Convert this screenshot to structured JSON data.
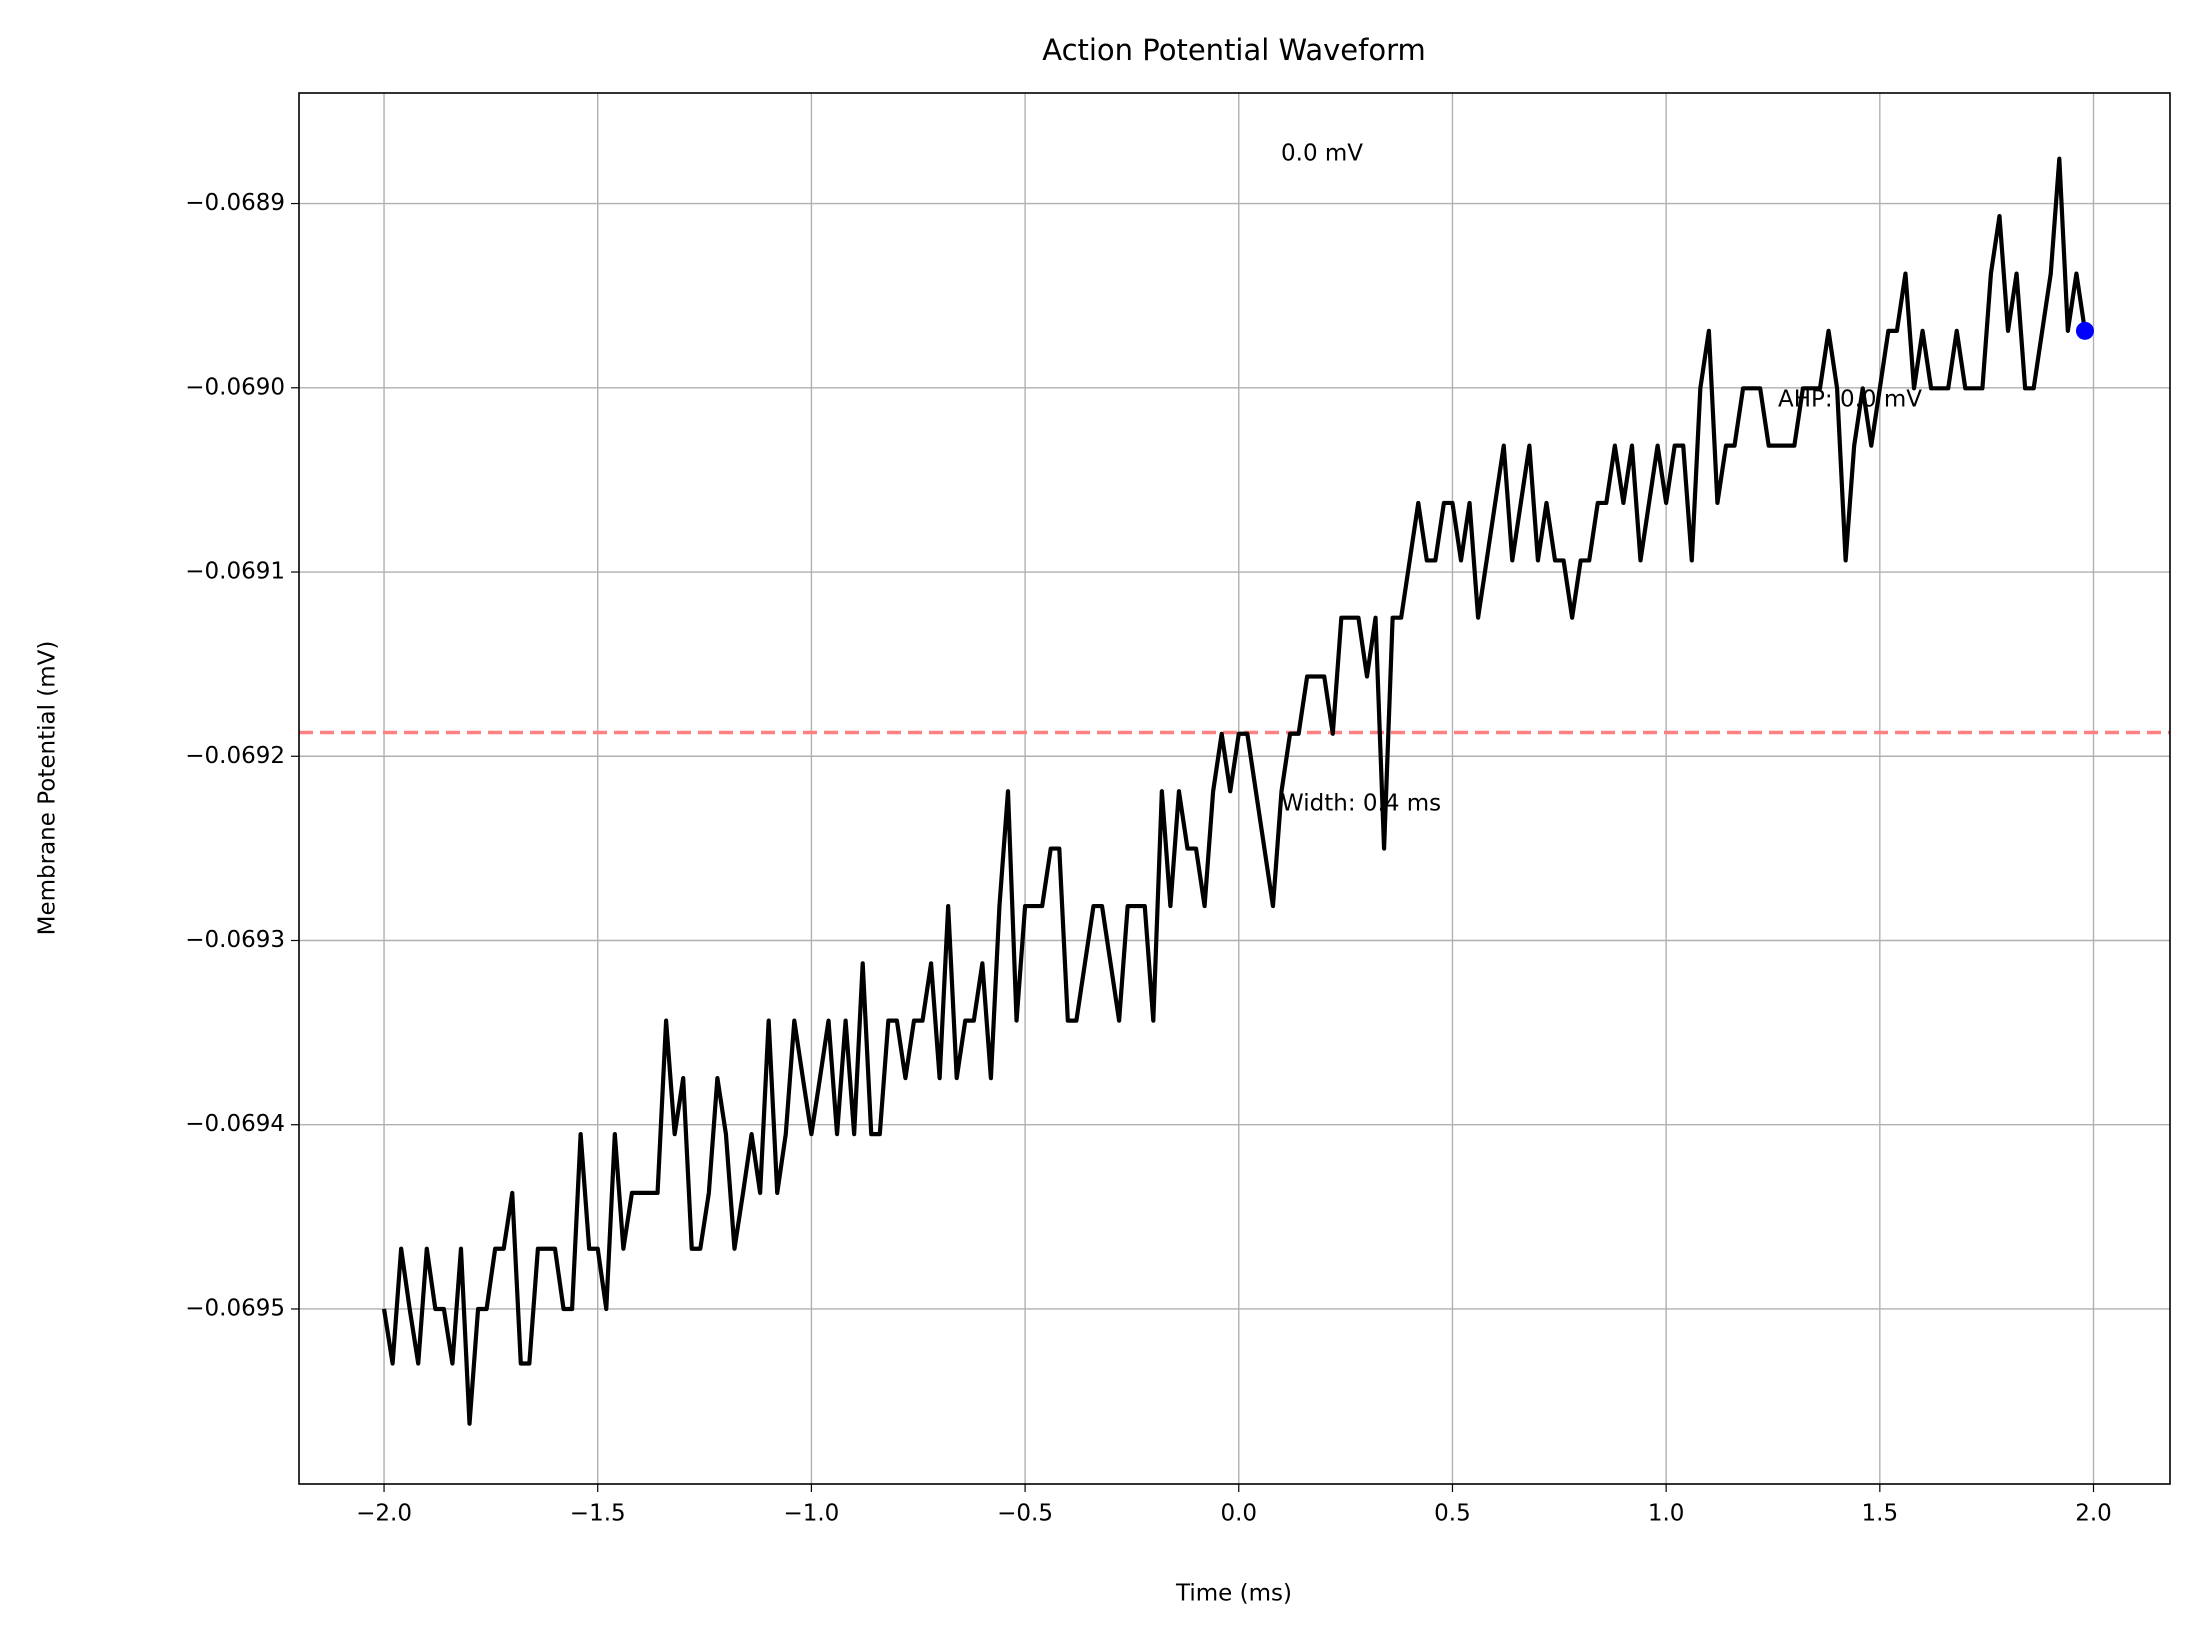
{
  "chart_data": {
    "type": "line",
    "title": "Action Potential Waveform",
    "x_label": "Time (ms)",
    "y_label": "Membrane Potential (mV)",
    "annotations": [
      "0.0 mV",
      "Width: 0.4 ms",
      "AHP: 0.0 mV"
    ],
    "x": [
      -2.0,
      -1.98,
      -1.96,
      -1.94,
      -1.92,
      -1.9,
      -1.88,
      -1.86,
      -1.84,
      -1.82,
      -1.8,
      -1.78,
      -1.76,
      -1.74,
      -1.72,
      -1.7,
      -1.68,
      -1.66,
      -1.64,
      -1.62,
      -1.6,
      -1.58,
      -1.56,
      -1.54,
      -1.52,
      -1.5,
      -1.48,
      -1.46,
      -1.44,
      -1.42,
      -1.4,
      -1.38,
      -1.36,
      -1.34,
      -1.32,
      -1.3,
      -1.28,
      -1.26,
      -1.24,
      -1.22,
      -1.2,
      -1.18,
      -1.16,
      -1.14,
      -1.12,
      -1.1,
      -1.08,
      -1.06,
      -1.04,
      -1.02,
      -1.0,
      -0.98,
      -0.96,
      -0.94,
      -0.92,
      -0.9,
      -0.88,
      -0.86,
      -0.84,
      -0.82,
      -0.8,
      -0.78,
      -0.76,
      -0.74,
      -0.72,
      -0.7,
      -0.68,
      -0.66,
      -0.64,
      -0.62,
      -0.6,
      -0.58,
      -0.56,
      -0.54,
      -0.52,
      -0.5,
      -0.48,
      -0.46,
      -0.44,
      -0.42,
      -0.4,
      -0.38,
      -0.36,
      -0.34,
      -0.32,
      -0.3,
      -0.28,
      -0.26,
      -0.24,
      -0.22,
      -0.2,
      -0.18,
      -0.16,
      -0.14,
      -0.12,
      -0.1,
      -0.08,
      -0.06,
      -0.04,
      -0.02,
      0.0,
      0.02,
      0.04,
      0.06,
      0.08,
      0.1,
      0.12,
      0.14,
      0.16,
      0.18,
      0.2,
      0.22,
      0.24,
      0.26,
      0.28,
      0.3,
      0.32,
      0.34,
      0.36,
      0.38,
      0.4,
      0.42,
      0.44,
      0.46,
      0.48,
      0.5,
      0.52,
      0.54,
      0.56,
      0.58,
      0.6,
      0.62,
      0.64,
      0.66,
      0.68,
      0.7,
      0.72,
      0.74,
      0.76,
      0.78,
      0.8,
      0.82,
      0.84,
      0.86,
      0.88,
      0.9,
      0.92,
      0.94,
      0.96,
      0.98,
      1.0,
      1.02,
      1.04,
      1.06,
      1.08,
      1.1,
      1.12,
      1.14,
      1.16,
      1.18,
      1.2,
      1.22,
      1.24,
      1.26,
      1.28,
      1.3,
      1.32,
      1.34,
      1.36,
      1.38,
      1.4,
      1.42,
      1.44,
      1.46,
      1.48,
      1.5,
      1.52,
      1.54,
      1.56,
      1.58,
      1.6,
      1.62,
      1.64,
      1.66,
      1.68,
      1.7,
      1.72,
      1.74,
      1.76,
      1.78,
      1.8,
      1.82,
      1.84,
      1.86,
      1.88,
      1.9,
      1.92,
      1.94,
      1.96,
      1.98
    ],
    "series": [
      {
        "name": "Membrane Potential",
        "color": "#000000",
        "values": [
          -0.0695,
          -0.0695296,
          -0.0694673,
          -0.0695,
          -0.0695296,
          -0.0694673,
          -0.0695,
          -0.0695,
          -0.0695296,
          -0.0694673,
          -0.0695623,
          -0.0695,
          -0.0695,
          -0.0694673,
          -0.0694673,
          -0.069437,
          -0.0695296,
          -0.0695296,
          -0.0694673,
          -0.0694673,
          -0.0694673,
          -0.0695,
          -0.0695,
          -0.0694051,
          -0.0694673,
          -0.0694673,
          -0.0695,
          -0.0694051,
          -0.0694673,
          -0.069437,
          -0.069437,
          -0.069437,
          -0.069437,
          -0.0693435,
          -0.0694051,
          -0.0693747,
          -0.0694673,
          -0.0694673,
          -0.069437,
          -0.0693747,
          -0.0694051,
          -0.0694673,
          -0.069437,
          -0.0694051,
          -0.069437,
          -0.0693435,
          -0.069437,
          -0.0694051,
          -0.0693435,
          -0.0693747,
          -0.0694051,
          -0.0693747,
          -0.0693435,
          -0.0694051,
          -0.0693435,
          -0.0694051,
          -0.0693124,
          -0.0694051,
          -0.0694051,
          -0.0693435,
          -0.0693435,
          -0.0693747,
          -0.0693435,
          -0.0693435,
          -0.0693124,
          -0.0693747,
          -0.0692813,
          -0.0693747,
          -0.0693435,
          -0.0693435,
          -0.0693124,
          -0.0693747,
          -0.0692813,
          -0.069219,
          -0.0693435,
          -0.0692813,
          -0.0692813,
          -0.0692813,
          -0.0692501,
          -0.0692501,
          -0.0693435,
          -0.0693435,
          -0.0693124,
          -0.0692813,
          -0.0692813,
          -0.0693124,
          -0.0693435,
          -0.0692813,
          -0.0692813,
          -0.0692813,
          -0.0693435,
          -0.069219,
          -0.0692813,
          -0.069219,
          -0.0692501,
          -0.0692501,
          -0.0692813,
          -0.069219,
          -0.0691878,
          -0.069219,
          -0.0691878,
          -0.0691878,
          -0.069219,
          -0.0692501,
          -0.0692813,
          -0.069219,
          -0.0691878,
          -0.0691878,
          -0.0691567,
          -0.0691567,
          -0.0691567,
          -0.0691878,
          -0.0691248,
          -0.0691248,
          -0.0691248,
          -0.0691567,
          -0.0691248,
          -0.0692501,
          -0.0691248,
          -0.0691248,
          -0.0690937,
          -0.0690625,
          -0.0690937,
          -0.0690937,
          -0.0690625,
          -0.0690625,
          -0.0690937,
          -0.0690625,
          -0.0691248,
          -0.0690937,
          -0.0690625,
          -0.0690314,
          -0.0690937,
          -0.0690625,
          -0.0690314,
          -0.0690937,
          -0.0690625,
          -0.0690937,
          -0.0690937,
          -0.0691248,
          -0.0690937,
          -0.0690937,
          -0.0690625,
          -0.0690625,
          -0.0690314,
          -0.0690625,
          -0.0690314,
          -0.0690937,
          -0.0690625,
          -0.0690314,
          -0.0690625,
          -0.0690314,
          -0.0690314,
          -0.0690937,
          -0.0690003,
          -0.0689691,
          -0.0690625,
          -0.0690314,
          -0.0690314,
          -0.0690003,
          -0.0690003,
          -0.0690003,
          -0.0690314,
          -0.0690314,
          -0.0690314,
          -0.0690314,
          -0.0690003,
          -0.0690003,
          -0.0690003,
          -0.0689691,
          -0.0690003,
          -0.0690937,
          -0.0690314,
          -0.0690003,
          -0.0690314,
          -0.0690003,
          -0.0689691,
          -0.0689691,
          -0.068938,
          -0.0690003,
          -0.0689691,
          -0.0690003,
          -0.0690003,
          -0.0690003,
          -0.0689691,
          -0.0690003,
          -0.0690003,
          -0.0690003,
          -0.068938,
          -0.0689068,
          -0.0689691,
          -0.068938,
          -0.0690003,
          -0.0690003,
          -0.0689691,
          -0.068938,
          -0.0688757,
          -0.0689691,
          -0.068938,
          -0.0689691
        ]
      }
    ],
    "marker_color": "#0000ff",
    "threshold": -0.0691871,
    "threshold_color": "#ff8080",
    "xlim": [
      -2.199,
      2.179
    ],
    "ylim": [
      -0.069595,
      -0.06884
    ],
    "xticks": [
      {
        "value": -2.0,
        "label": "−2.0"
      },
      {
        "value": -1.5,
        "label": "−1.5"
      },
      {
        "value": -1.0,
        "label": "−1.0"
      },
      {
        "value": -0.5,
        "label": "−0.5"
      },
      {
        "value": 0.0,
        "label": "0.0"
      },
      {
        "value": 0.5,
        "label": "0.5"
      },
      {
        "value": 1.0,
        "label": "1.0"
      },
      {
        "value": 1.5,
        "label": "1.5"
      },
      {
        "value": 2.0,
        "label": "2.0"
      }
    ],
    "yticks": [
      {
        "value": -0.0695,
        "label": "−0.0695"
      },
      {
        "value": -0.0694,
        "label": "−0.0694"
      },
      {
        "value": -0.0693,
        "label": "−0.0693"
      },
      {
        "value": -0.0692,
        "label": "−0.0692"
      },
      {
        "value": -0.0691,
        "label": "−0.0691"
      },
      {
        "value": -0.069,
        "label": "−0.0690"
      },
      {
        "value": -0.0689,
        "label": "−0.0689"
      }
    ],
    "grid": true
  }
}
